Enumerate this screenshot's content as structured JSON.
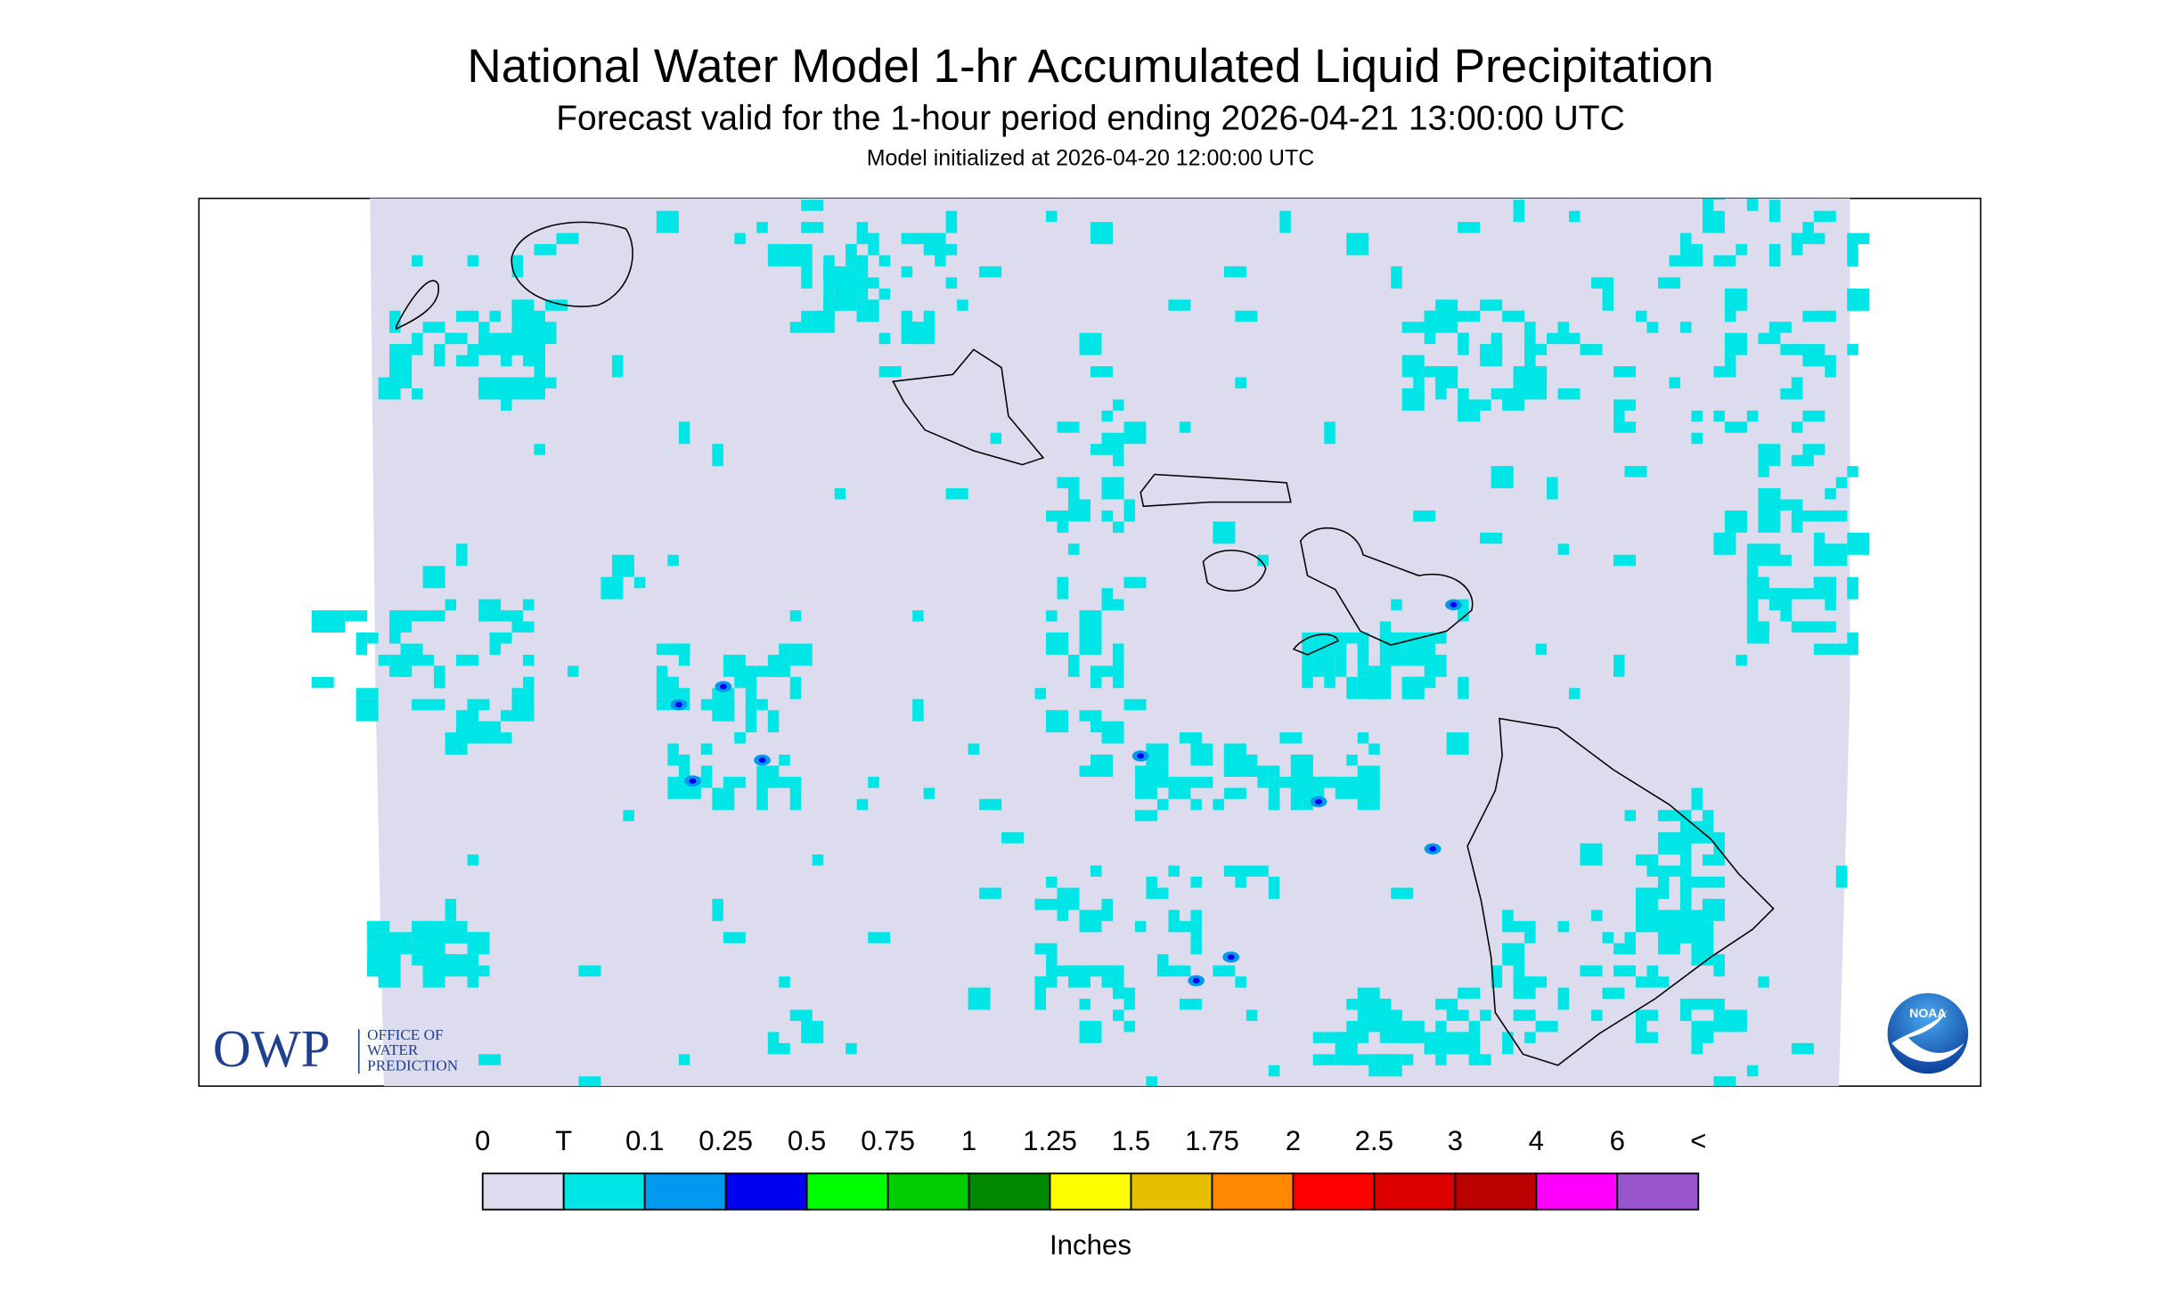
{
  "header": {
    "title": "National Water Model 1-hr Accumulated Liquid Precipitation",
    "subtitle": "Forecast valid for the 1-hour period ending 2026-04-21 13:00:00 UTC",
    "model_init": "Model initialized at 2026-04-20 12:00:00 UTC"
  },
  "logos": {
    "owp": "OWP",
    "owp_lines": [
      "OFFICE OF",
      "WATER",
      "PREDICTION"
    ],
    "noaa": "NOAA"
  },
  "legend": {
    "labels": [
      "0",
      "T",
      "0.1",
      "0.25",
      "0.5",
      "0.75",
      "1",
      "1.25",
      "1.5",
      "1.75",
      "2",
      "2.5",
      "3",
      "4",
      "6",
      "<"
    ],
    "colors": [
      "#dcdcee",
      "#00e6e6",
      "#0099f0",
      "#0000f0",
      "#00ff00",
      "#00cc00",
      "#008800",
      "#ffff00",
      "#e6bf00",
      "#ff8800",
      "#ff0000",
      "#dd0000",
      "#bb0000",
      "#ff00ff",
      "#9955cc"
    ],
    "unit": "Inches"
  }
}
